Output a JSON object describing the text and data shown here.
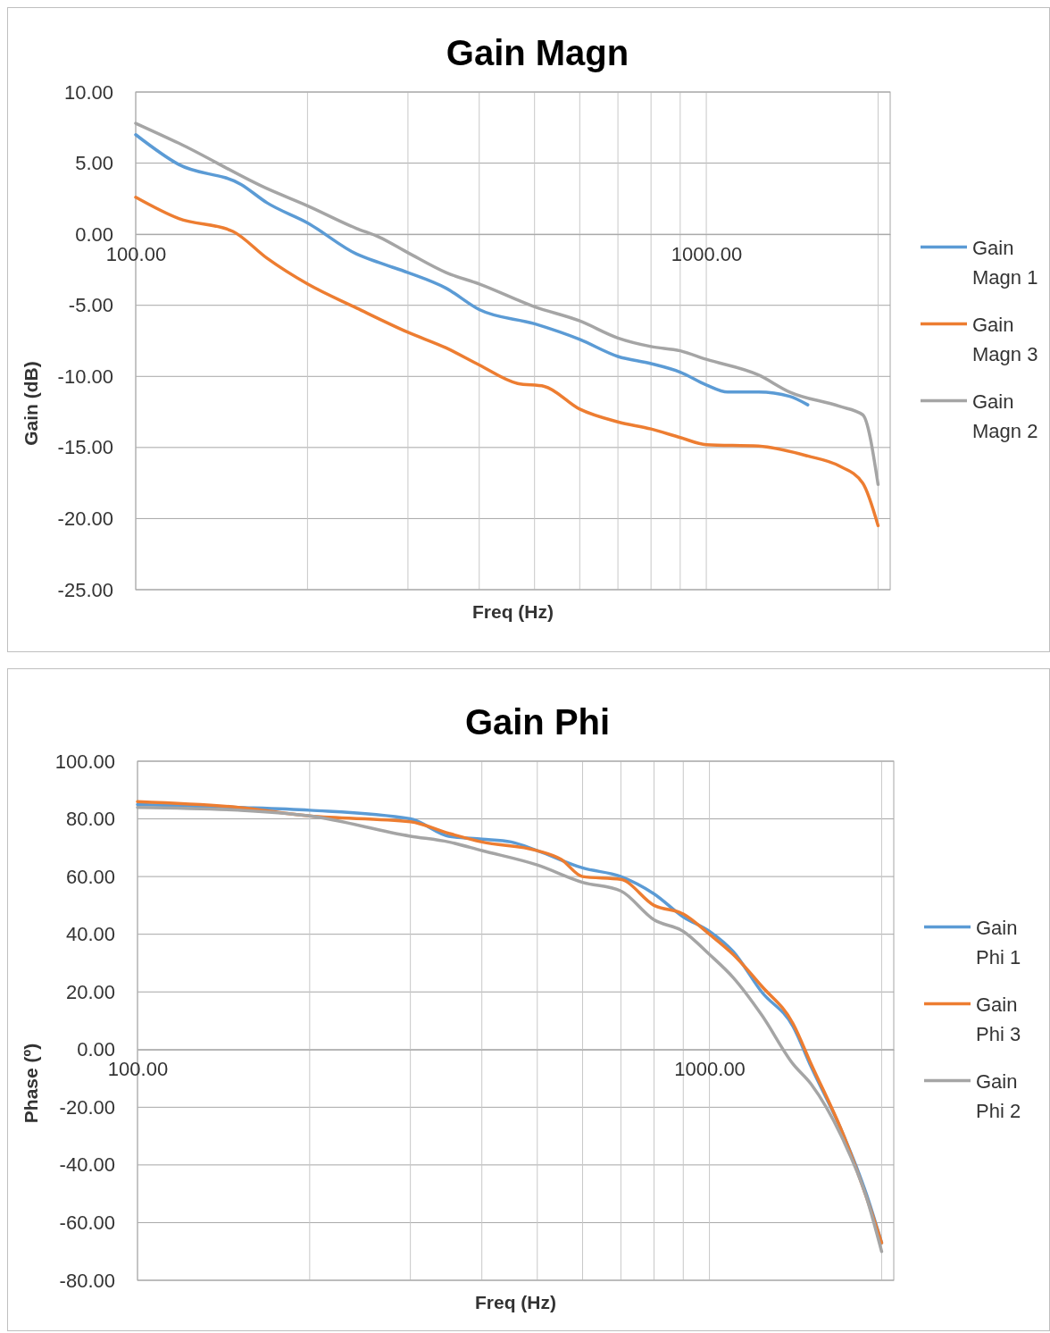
{
  "chart_data": [
    {
      "type": "line",
      "title": "Gain Magn",
      "xlabel": "Freq (Hz)",
      "ylabel": "Gain (dB)",
      "log": "x",
      "grid": true,
      "legend": "right",
      "xlim": [
        100,
        2100
      ],
      "xticks": [
        {
          "value": 100,
          "label": "100.00"
        },
        {
          "value": 200,
          "label": null
        },
        {
          "value": 300,
          "label": null
        },
        {
          "value": 400,
          "label": null
        },
        {
          "value": 500,
          "label": null
        },
        {
          "value": 600,
          "label": null
        },
        {
          "value": 700,
          "label": null
        },
        {
          "value": 800,
          "label": null
        },
        {
          "value": 900,
          "label": null
        },
        {
          "value": 1000,
          "label": "1000.00"
        },
        {
          "value": 2000,
          "label": null
        }
      ],
      "ylim": [
        -25,
        10
      ],
      "yticks": [
        {
          "value": -25,
          "label": "-25.00"
        },
        {
          "value": -20,
          "label": "-20.00"
        },
        {
          "value": -15,
          "label": "-15.00"
        },
        {
          "value": -10,
          "label": "-10.00"
        },
        {
          "value": -5,
          "label": "-5.00"
        },
        {
          "value": 0,
          "label": "0.00"
        },
        {
          "value": 5,
          "label": "5.00"
        },
        {
          "value": 10,
          "label": "10.00"
        }
      ],
      "series": [
        {
          "name": "Gain Magn 1",
          "color": "#5b9bd5",
          "x": [
            100,
            119,
            153,
            170,
            200,
            244,
            267,
            300,
            350,
            400,
            500,
            600,
            700,
            800,
            900,
            1000,
            1090,
            1234,
            1400,
            1506
          ],
          "values": [
            7.0,
            4.9,
            3.5,
            2.2,
            0.8,
            -1.4,
            -2.0,
            -2.7,
            -3.8,
            -5.3,
            -6.3,
            -7.4,
            -8.6,
            -9.1,
            -9.7,
            -10.6,
            -11.1,
            -11.1,
            -11.4,
            -12.0
          ]
        },
        {
          "name": "Gain Magn 3",
          "color": "#ed7d31",
          "x": [
            100,
            119,
            148,
            170,
            200,
            244,
            300,
            350,
            400,
            467,
            520,
            600,
            700,
            800,
            900,
            1000,
            1234,
            1506,
            1710,
            1880,
            2000
          ],
          "values": [
            2.6,
            1.1,
            0.2,
            -1.7,
            -3.5,
            -5.2,
            -6.9,
            -8.0,
            -9.2,
            -10.5,
            -10.7,
            -12.3,
            -13.2,
            -13.7,
            -14.3,
            -14.8,
            -14.9,
            -15.6,
            -16.3,
            -17.5,
            -20.5
          ]
        },
        {
          "name": "Gain Magn 2",
          "color": "#a5a5a5",
          "x": [
            100,
            119,
            170,
            200,
            244,
            267,
            300,
            350,
            400,
            500,
            600,
            700,
            800,
            900,
            1000,
            1234,
            1400,
            1710,
            1880,
            2000
          ],
          "values": [
            7.8,
            6.4,
            3.2,
            2.0,
            0.4,
            -0.2,
            -1.3,
            -2.7,
            -3.5,
            -5.1,
            -6.1,
            -7.3,
            -7.9,
            -8.2,
            -8.8,
            -9.9,
            -11.1,
            -12.1,
            -12.7,
            -17.6
          ]
        }
      ]
    },
    {
      "type": "line",
      "title": "Gain Phi",
      "xlabel": "Freq (Hz)",
      "ylabel": "Phase (º)",
      "log": "x",
      "grid": true,
      "legend": "right",
      "xlim": [
        100,
        2100
      ],
      "xticks": [
        {
          "value": 100,
          "label": "100.00"
        },
        {
          "value": 200,
          "label": null
        },
        {
          "value": 300,
          "label": null
        },
        {
          "value": 400,
          "label": null
        },
        {
          "value": 500,
          "label": null
        },
        {
          "value": 600,
          "label": null
        },
        {
          "value": 700,
          "label": null
        },
        {
          "value": 800,
          "label": null
        },
        {
          "value": 900,
          "label": null
        },
        {
          "value": 1000,
          "label": "1000.00"
        },
        {
          "value": 2000,
          "label": null
        }
      ],
      "ylim": [
        -80,
        100
      ],
      "yticks": [
        {
          "value": -80,
          "label": "-80.00"
        },
        {
          "value": -60,
          "label": "-60.00"
        },
        {
          "value": -40,
          "label": "-40.00"
        },
        {
          "value": -20,
          "label": "-20.00"
        },
        {
          "value": 0,
          "label": "0.00"
        },
        {
          "value": 20,
          "label": "20.00"
        },
        {
          "value": 40,
          "label": "40.00"
        },
        {
          "value": 60,
          "label": "60.00"
        },
        {
          "value": 80,
          "label": "80.00"
        },
        {
          "value": 100,
          "label": "100.00"
        }
      ],
      "series": [
        {
          "name": "Gain Phi 1",
          "color": "#5b9bd5",
          "x": [
            100,
            150,
            200,
            300,
            350,
            400,
            450,
            500,
            600,
            700,
            800,
            900,
            1000,
            1100,
            1234,
            1400,
            1506,
            1710,
            1880,
            2000
          ],
          "values": [
            85,
            84,
            83,
            80,
            74,
            73,
            72,
            69,
            63,
            60,
            54,
            46,
            41,
            34,
            20,
            8,
            -6,
            -29,
            -50,
            -67
          ]
        },
        {
          "name": "Gain Phi 3",
          "color": "#ed7d31",
          "x": [
            100,
            150,
            200,
            300,
            350,
            400,
            500,
            550,
            600,
            700,
            800,
            900,
            1000,
            1100,
            1234,
            1400,
            1506,
            1710,
            1880,
            2000
          ],
          "values": [
            86,
            84,
            81,
            79,
            75,
            72,
            69,
            66,
            60,
            59,
            50,
            47,
            40,
            33,
            22,
            9,
            -5,
            -29,
            -51,
            -67
          ]
        },
        {
          "name": "Gain Phi 2",
          "color": "#a5a5a5",
          "x": [
            100,
            150,
            200,
            300,
            350,
            400,
            500,
            600,
            700,
            800,
            900,
            1000,
            1100,
            1234,
            1400,
            1506,
            1710,
            1880,
            2000
          ],
          "values": [
            84,
            83,
            81,
            74,
            72,
            69,
            64,
            58,
            55,
            45,
            41,
            33,
            25,
            12,
            -5,
            -12,
            -31,
            -51,
            -70
          ]
        }
      ]
    }
  ]
}
